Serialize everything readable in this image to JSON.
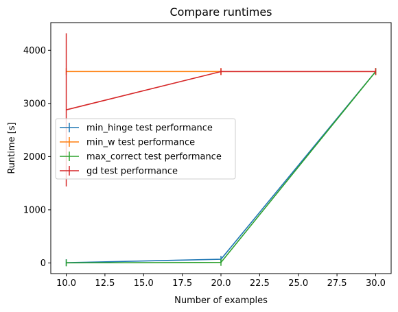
{
  "chart_data": {
    "type": "line",
    "title": "Compare runtimes",
    "xlabel": "Number of examples",
    "ylabel": "Runtime [s]",
    "x": [
      10,
      20,
      30
    ],
    "xlim": [
      9.0,
      31.0
    ],
    "ylim": [
      -200,
      4520
    ],
    "xticks": [
      10.0,
      12.5,
      15.0,
      17.5,
      20.0,
      22.5,
      25.0,
      27.5,
      30.0
    ],
    "xtick_labels": [
      "10.0",
      "12.5",
      "15.0",
      "17.5",
      "20.0",
      "22.5",
      "25.0",
      "27.5",
      "30.0"
    ],
    "yticks": [
      0,
      1000,
      2000,
      3000,
      4000
    ],
    "ytick_labels": [
      "0",
      "1000",
      "2000",
      "3000",
      "4000"
    ],
    "grid": false,
    "legend_position": "center-left",
    "series": [
      {
        "name": "min_hinge test performance",
        "color": "#1f77b4",
        "values": [
          5,
          70,
          3600
        ],
        "errors": [
          0,
          0,
          0
        ]
      },
      {
        "name": "min_w test performance",
        "color": "#ff7f0e",
        "values": [
          3600,
          3600,
          3600
        ],
        "errors": [
          0,
          0,
          0
        ]
      },
      {
        "name": "max_correct test performance",
        "color": "#2ca02c",
        "values": [
          2,
          10,
          3600
        ],
        "errors": [
          0,
          0,
          0
        ]
      },
      {
        "name": "gd test performance",
        "color": "#d62728",
        "values": [
          2880,
          3600,
          3600
        ],
        "errors": [
          1440,
          0,
          0
        ]
      }
    ]
  }
}
